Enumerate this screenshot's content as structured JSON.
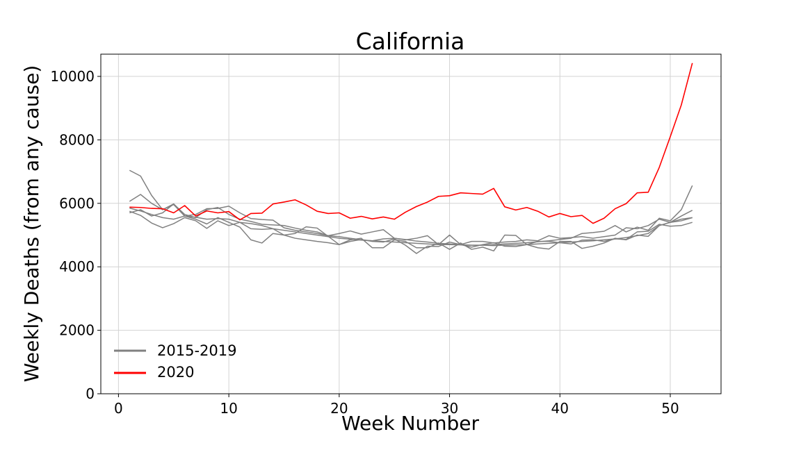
{
  "chart_data": {
    "type": "line",
    "title": "California",
    "xlabel": "Week Number",
    "ylabel": "Weekly Deaths (from any cause)",
    "xlim": [
      -1.6,
      54.6
    ],
    "ylim": [
      0,
      10700
    ],
    "xticks": [
      0,
      10,
      20,
      30,
      40,
      50
    ],
    "yticks": [
      0,
      2000,
      4000,
      6000,
      8000,
      10000
    ],
    "grid": true,
    "legend_position": "lower-left",
    "legend": [
      {
        "label": "2015-2019",
        "color": "#808080"
      },
      {
        "label": "2020",
        "color": "#ff0000"
      }
    ],
    "series": [
      {
        "group": "2015-2019",
        "color": "#808080",
        "x": [
          1,
          2,
          3,
          4,
          5,
          6,
          7,
          8,
          9,
          10,
          11,
          12,
          13,
          14,
          15,
          16,
          17,
          18,
          19,
          20,
          21,
          22,
          23,
          24,
          25,
          26,
          27,
          28,
          29,
          30,
          31,
          32,
          33,
          34,
          35,
          36,
          37,
          38,
          39,
          40,
          41,
          42,
          43,
          44,
          45,
          46,
          47,
          48,
          49,
          50,
          51,
          52
        ],
        "y": [
          7040,
          6860,
          6250,
          5800,
          5960,
          5600,
          5560,
          5500,
          5520,
          5500,
          5400,
          5360,
          5300,
          5200,
          5150,
          5100,
          5050,
          5000,
          4950,
          4900,
          4870,
          4840,
          4820,
          4800,
          4780,
          4760,
          4740,
          4720,
          4700,
          4700,
          4690,
          4680,
          4680,
          4670,
          4680,
          4690,
          4700,
          4720,
          4740,
          4760,
          4780,
          4800,
          4820,
          4850,
          4880,
          4920,
          4980,
          5050,
          5300,
          5400,
          5500,
          5550
        ]
      },
      {
        "group": "2015-2019",
        "color": "#808080",
        "x": [
          1,
          2,
          3,
          4,
          5,
          6,
          7,
          8,
          9,
          10,
          11,
          12,
          13,
          14,
          15,
          16,
          17,
          18,
          19,
          20,
          21,
          22,
          23,
          24,
          25,
          26,
          27,
          28,
          29,
          30,
          31,
          32,
          33,
          34,
          35,
          36,
          37,
          38,
          39,
          40,
          41,
          42,
          43,
          44,
          45,
          46,
          47,
          48,
          49,
          50,
          51,
          52
        ],
        "y": [
          6060,
          6280,
          6000,
          5800,
          5980,
          5650,
          5550,
          5800,
          5870,
          5650,
          5500,
          5430,
          5340,
          5320,
          5300,
          5220,
          5150,
          5100,
          4980,
          4950,
          4900,
          4850,
          4820,
          4880,
          4900,
          4860,
          4810,
          4780,
          4740,
          4720,
          4700,
          4680,
          4680,
          4700,
          4720,
          4740,
          4760,
          4790,
          4820,
          4860,
          4900,
          5050,
          5080,
          5120,
          5300,
          5100,
          5250,
          5150,
          5530,
          5450,
          5800,
          6560
        ]
      },
      {
        "group": "2015-2019",
        "color": "#808080",
        "x": [
          1,
          2,
          3,
          4,
          5,
          6,
          7,
          8,
          9,
          10,
          11,
          12,
          13,
          14,
          15,
          16,
          17,
          18,
          19,
          20,
          21,
          22,
          23,
          24,
          25,
          26,
          27,
          28,
          29,
          30,
          31,
          32,
          33,
          34,
          35,
          36,
          37,
          38,
          39,
          40,
          41,
          42,
          43,
          44,
          45,
          46,
          47,
          48,
          49,
          50,
          51,
          52
        ],
        "y": [
          5850,
          5760,
          5650,
          5550,
          5500,
          5600,
          5500,
          5350,
          5550,
          5400,
          5250,
          4850,
          4750,
          5050,
          5000,
          5050,
          5260,
          5220,
          4960,
          4700,
          4850,
          4900,
          4600,
          4600,
          4850,
          4800,
          4600,
          4600,
          4750,
          4550,
          4750,
          4550,
          4620,
          4500,
          5000,
          4990,
          4700,
          4600,
          4560,
          4800,
          4800,
          4580,
          4650,
          4750,
          4900,
          4850,
          5000,
          4960,
          5300,
          5400,
          5600,
          5780
        ]
      },
      {
        "group": "2015-2019",
        "color": "#808080",
        "x": [
          1,
          2,
          3,
          4,
          5,
          6,
          7,
          8,
          9,
          10,
          11,
          12,
          13,
          14,
          15,
          16,
          17,
          18,
          19,
          20,
          21,
          22,
          23,
          24,
          25,
          26,
          27,
          28,
          29,
          30,
          31,
          32,
          33,
          34,
          35,
          36,
          37,
          38,
          39,
          40,
          41,
          42,
          43,
          44,
          45,
          46,
          47,
          48,
          49,
          50,
          51,
          52
        ],
        "y": [
          5750,
          5620,
          5380,
          5230,
          5360,
          5550,
          5450,
          5210,
          5450,
          5300,
          5400,
          5200,
          5180,
          5200,
          5000,
          4900,
          4850,
          4800,
          4760,
          4700,
          4800,
          4860,
          4800,
          4780,
          4880,
          4680,
          4420,
          4650,
          4640,
          4780,
          4700,
          4620,
          4700,
          4760,
          4650,
          4640,
          4700,
          4800,
          4800,
          4760,
          4720,
          4840,
          4850,
          4800,
          4880,
          4860,
          5100,
          5120,
          5340,
          5280,
          5300,
          5400
        ]
      },
      {
        "group": "2015-2019",
        "color": "#808080",
        "x": [
          1,
          2,
          3,
          4,
          5,
          6,
          7,
          8,
          9,
          10,
          11,
          12,
          13,
          14,
          15,
          16,
          17,
          18,
          19,
          20,
          21,
          22,
          23,
          24,
          25,
          26,
          27,
          28,
          29,
          30,
          31,
          32,
          33,
          34,
          35,
          36,
          37,
          38,
          39,
          40,
          41,
          42,
          43,
          44,
          45,
          46,
          47,
          48,
          49,
          50,
          51,
          52
        ],
        "y": [
          5700,
          5800,
          5600,
          5700,
          5980,
          5600,
          5650,
          5830,
          5840,
          5910,
          5700,
          5520,
          5490,
          5470,
          5230,
          5150,
          5100,
          5050,
          4980,
          5050,
          5130,
          5030,
          5100,
          5170,
          4900,
          4850,
          4900,
          4980,
          4700,
          5000,
          4700,
          4800,
          4800,
          4750,
          4780,
          4800,
          4850,
          4820,
          4980,
          4900,
          4920,
          4950,
          4900,
          4950,
          5000,
          5230,
          5200,
          5300,
          5500,
          5400,
          5450,
          5550
        ]
      },
      {
        "group": "2020",
        "color": "#ff0000",
        "x": [
          1,
          2,
          3,
          4,
          5,
          6,
          7,
          8,
          9,
          10,
          11,
          12,
          13,
          14,
          15,
          16,
          17,
          18,
          19,
          20,
          21,
          22,
          23,
          24,
          25,
          26,
          27,
          28,
          29,
          30,
          31,
          32,
          33,
          34,
          35,
          36,
          37,
          38,
          39,
          40,
          41,
          42,
          43,
          44,
          45,
          46,
          47,
          48,
          49,
          50,
          51,
          52
        ],
        "y": [
          5880,
          5870,
          5840,
          5830,
          5700,
          5930,
          5600,
          5760,
          5700,
          5740,
          5480,
          5680,
          5690,
          5980,
          6040,
          6110,
          5950,
          5750,
          5680,
          5700,
          5530,
          5590,
          5510,
          5570,
          5500,
          5720,
          5900,
          6040,
          6220,
          6240,
          6330,
          6310,
          6290,
          6470,
          5890,
          5790,
          5870,
          5750,
          5570,
          5680,
          5580,
          5620,
          5370,
          5530,
          5830,
          5990,
          6330,
          6350,
          7130,
          8100,
          9100,
          10420
        ]
      }
    ]
  }
}
